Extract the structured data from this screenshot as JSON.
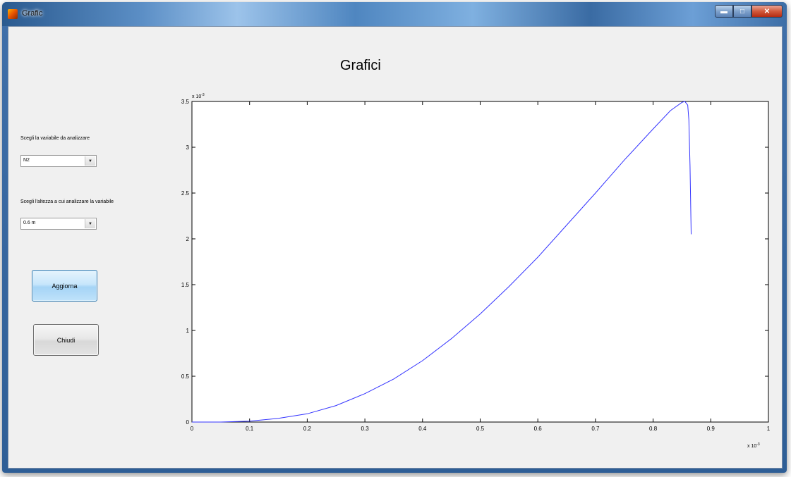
{
  "window": {
    "title": "Grafic"
  },
  "figure": {
    "title": "Grafici"
  },
  "controls": {
    "variable_label": "Scegli la variabile da analizzare",
    "variable_value": "N2",
    "height_label": "Scegli l'altezza a cui analizzare la variabile",
    "height_value": "0.6 m",
    "update_button": "Aggiorna",
    "close_button": "Chiudi"
  },
  "icons": {
    "app": "matlab-icon",
    "minimize": "minimize-icon",
    "maximize": "maximize-icon",
    "close": "close-icon",
    "dropdown": "chevron-down-icon"
  },
  "chart_data": {
    "type": "line",
    "title": "",
    "xlabel": "",
    "ylabel": "",
    "x_multiplier": "x 10",
    "x_multiplier_exp": "-3",
    "y_multiplier": "x 10",
    "y_multiplier_exp": "-3",
    "xlim": [
      0,
      1
    ],
    "ylim": [
      0,
      3.5
    ],
    "x_ticks": [
      0,
      0.1,
      0.2,
      0.3,
      0.4,
      0.5,
      0.6,
      0.7,
      0.8,
      0.9,
      1
    ],
    "x_tick_labels": [
      "0",
      "0.1",
      "0.2",
      "0.3",
      "0.4",
      "0.5",
      "0.6",
      "0.7",
      "0.8",
      "0.9",
      "1"
    ],
    "y_ticks": [
      0,
      0.5,
      1,
      1.5,
      2,
      2.5,
      3,
      3.5
    ],
    "y_tick_labels": [
      "0",
      "0.5",
      "1",
      "1.5",
      "2",
      "2.5",
      "3",
      "3.5"
    ],
    "grid": false,
    "series": [
      {
        "color": "#3333ff",
        "x": [
          0,
          0.05,
          0.1,
          0.15,
          0.2,
          0.25,
          0.3,
          0.35,
          0.4,
          0.45,
          0.5,
          0.55,
          0.6,
          0.65,
          0.7,
          0.75,
          0.8,
          0.83,
          0.85,
          0.855,
          0.86,
          0.862,
          0.864,
          0.866
        ],
        "y": [
          0,
          0,
          0.01,
          0.04,
          0.09,
          0.18,
          0.31,
          0.47,
          0.67,
          0.91,
          1.18,
          1.48,
          1.8,
          2.15,
          2.5,
          2.86,
          3.2,
          3.4,
          3.49,
          3.5,
          3.46,
          3.3,
          2.8,
          2.05
        ]
      }
    ]
  }
}
